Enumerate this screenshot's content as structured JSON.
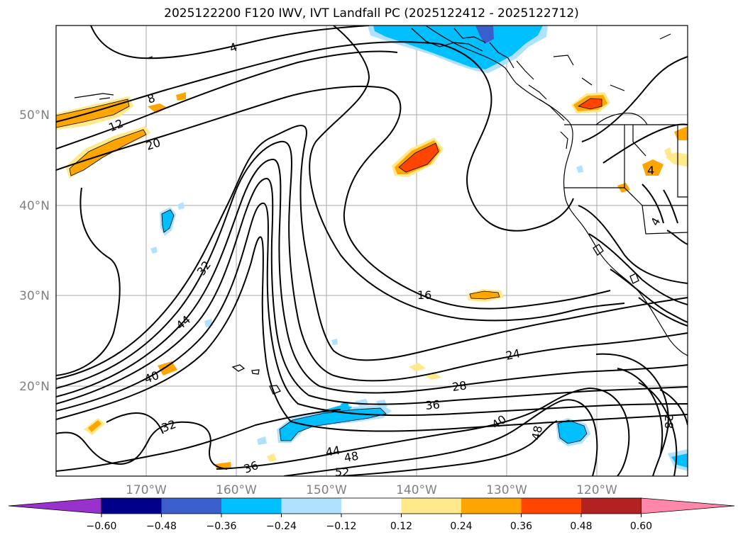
{
  "title": "2025122200 F120 IWV, IVT Landfall PC (2025122412 - 2025122712)",
  "lat_labels": [
    "50°N",
    "40°N",
    "30°N",
    "20°N"
  ],
  "lon_labels": [
    "170°W",
    "160°W",
    "150°W",
    "140°W",
    "130°W",
    "120°W"
  ],
  "contour_labels": [
    "4",
    "8",
    "12",
    "20",
    "16",
    "24",
    "28",
    "32",
    "36",
    "40",
    "44",
    "48",
    "52",
    "32",
    "40",
    "36",
    "44",
    "48",
    "28",
    "4",
    "4"
  ],
  "colorbar": {
    "tick_labels": [
      "−0.60",
      "−0.48",
      "−0.36",
      "−0.24",
      "−0.12",
      "0.12",
      "0.24",
      "0.36",
      "0.48",
      "0.60"
    ],
    "colors": [
      "#9932cc",
      "#00008b",
      "#3a5fcd",
      "#00bfff",
      "#b0e2ff",
      "#ffffff",
      "#ffe98a",
      "#ffa500",
      "#ff4500",
      "#b22222",
      "#ff88aa"
    ]
  }
}
